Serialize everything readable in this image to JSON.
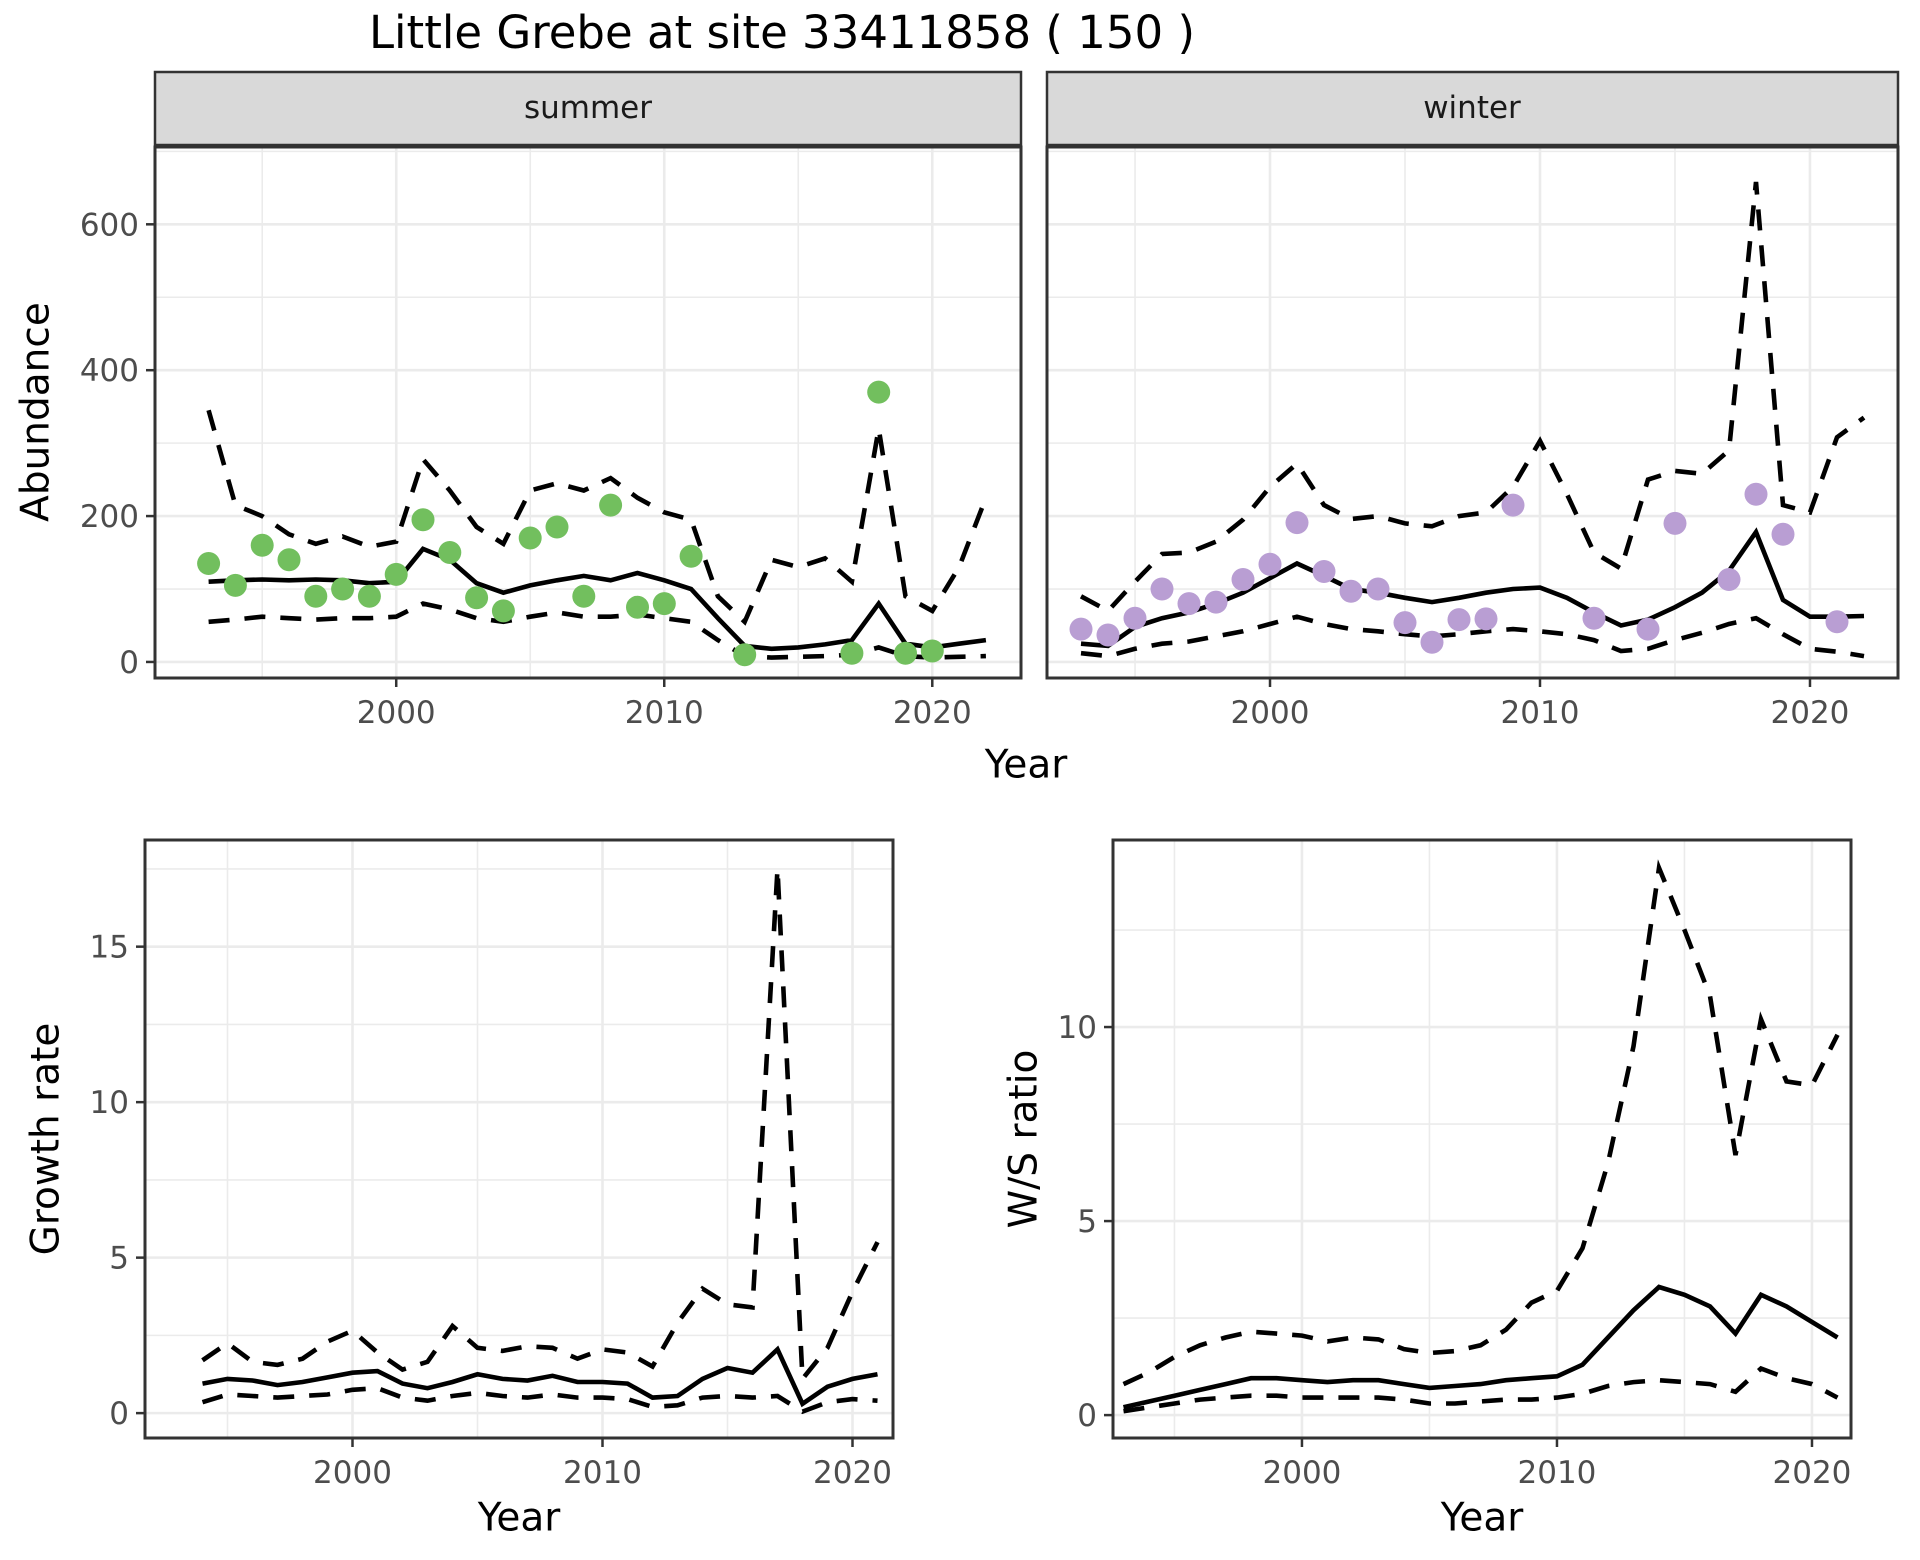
{
  "page": {
    "title": "Little Grebe at site 33411858 ( 150 )"
  },
  "chart_data": [
    {
      "id": "abundance_summer",
      "type": "line",
      "facet": "summer",
      "xlabel": "Year",
      "ylabel": "Abundance",
      "xlim": [
        1991.0,
        2023.31
      ],
      "ylim": [
        -22,
        706
      ],
      "x_ticks": [
        2000,
        2010,
        2020
      ],
      "x_minor": [
        1995,
        2005,
        2015
      ],
      "y_ticks": [
        0,
        200,
        400,
        600
      ],
      "y_minor": [
        100,
        300,
        500,
        700
      ],
      "grid": true,
      "point_color": "#72bf5e",
      "line_color": "#000000",
      "years": [
        1993,
        1994,
        1995,
        1996,
        1997,
        1998,
        1999,
        2000,
        2001,
        2002,
        2003,
        2004,
        2005,
        2006,
        2007,
        2008,
        2009,
        2010,
        2011,
        2012,
        2013,
        2014,
        2015,
        2016,
        2017,
        2018,
        2019,
        2020,
        2021,
        2022
      ],
      "series": [
        {
          "name": "fitted_index",
          "kind": "line",
          "dash": false,
          "values": [
            110,
            112,
            113,
            112,
            113,
            112,
            108,
            110,
            155,
            140,
            108,
            95,
            105,
            112,
            118,
            112,
            122,
            112,
            100,
            60,
            22,
            18,
            20,
            24,
            30,
            80,
            25,
            20,
            25,
            30
          ]
        },
        {
          "name": "upper_ci",
          "kind": "line",
          "dash": true,
          "values": [
            345,
            215,
            200,
            175,
            162,
            172,
            158,
            165,
            278,
            235,
            185,
            162,
            235,
            245,
            235,
            252,
            225,
            205,
            195,
            90,
            55,
            140,
            130,
            142,
            110,
            320,
            90,
            70,
            130,
            225
          ]
        },
        {
          "name": "lower_ci",
          "kind": "line",
          "dash": true,
          "values": [
            55,
            58,
            62,
            60,
            58,
            60,
            60,
            62,
            80,
            72,
            60,
            55,
            62,
            68,
            62,
            62,
            65,
            60,
            55,
            30,
            8,
            6,
            7,
            8,
            10,
            20,
            8,
            6,
            7,
            8
          ]
        },
        {
          "name": "observed_counts",
          "kind": "scatter",
          "years": [
            1993,
            1994,
            1995,
            1996,
            1997,
            1998,
            1999,
            2000,
            2001,
            2002,
            2003,
            2004,
            2005,
            2006,
            2007,
            2008,
            2009,
            2010,
            2011,
            2013,
            2017,
            2018,
            2019,
            2020
          ],
          "values": [
            135,
            105,
            160,
            140,
            90,
            100,
            90,
            120,
            195,
            150,
            88,
            70,
            170,
            185,
            90,
            215,
            75,
            80,
            145,
            10,
            12,
            370,
            12,
            15
          ]
        }
      ]
    },
    {
      "id": "abundance_winter",
      "type": "line",
      "facet": "winter",
      "xlabel": "Year",
      "ylabel": "Abundance",
      "xlim": [
        1991.74,
        2023.26
      ],
      "ylim": [
        -22,
        706
      ],
      "x_ticks": [
        2000,
        2010,
        2020
      ],
      "x_minor": [
        1995,
        2005,
        2015
      ],
      "y_ticks": [
        0,
        200,
        400,
        600
      ],
      "y_minor": [
        100,
        300,
        500,
        700
      ],
      "grid": true,
      "point_color": "#b99ed3",
      "line_color": "#000000",
      "years": [
        1993,
        1994,
        1995,
        1996,
        1997,
        1998,
        1999,
        2000,
        2001,
        2002,
        2003,
        2004,
        2005,
        2006,
        2007,
        2008,
        2009,
        2010,
        2011,
        2012,
        2013,
        2014,
        2015,
        2016,
        2017,
        2018,
        2019,
        2020,
        2021,
        2022
      ],
      "series": [
        {
          "name": "fitted_index",
          "kind": "line",
          "dash": false,
          "values": [
            25,
            22,
            48,
            60,
            68,
            80,
            95,
            115,
            135,
            118,
            100,
            95,
            88,
            82,
            88,
            95,
            100,
            102,
            88,
            68,
            50,
            58,
            75,
            95,
            125,
            178,
            85,
            62,
            62,
            63
          ]
        },
        {
          "name": "upper_ci",
          "kind": "line",
          "dash": true,
          "values": [
            90,
            70,
            110,
            148,
            150,
            165,
            195,
            240,
            272,
            215,
            196,
            200,
            190,
            186,
            200,
            205,
            240,
            303,
            230,
            150,
            128,
            250,
            262,
            258,
            290,
            658,
            215,
            205,
            308,
            335
          ]
        },
        {
          "name": "lower_ci",
          "kind": "line",
          "dash": true,
          "values": [
            12,
            8,
            18,
            25,
            28,
            35,
            42,
            52,
            62,
            52,
            45,
            42,
            38,
            35,
            38,
            42,
            45,
            42,
            38,
            30,
            15,
            18,
            30,
            40,
            52,
            60,
            38,
            18,
            14,
            8
          ]
        },
        {
          "name": "observed_counts",
          "kind": "scatter",
          "years": [
            1993,
            1994,
            1995,
            1996,
            1997,
            1998,
            1999,
            2000,
            2001,
            2002,
            2003,
            2004,
            2005,
            2006,
            2007,
            2008,
            2009,
            2012,
            2014,
            2015,
            2017,
            2018,
            2019,
            2021
          ],
          "values": [
            45,
            37,
            60,
            100,
            80,
            82,
            113,
            134,
            191,
            124,
            97,
            100,
            54,
            27,
            58,
            59,
            215,
            60,
            45,
            190,
            113,
            230,
            175,
            55
          ]
        }
      ]
    },
    {
      "id": "growth_rate",
      "type": "line",
      "facet": "",
      "xlabel": "Year",
      "ylabel": "Growth rate",
      "xlim": [
        1991.7,
        2021.62
      ],
      "ylim": [
        -0.8,
        18.43
      ],
      "x_ticks": [
        2000,
        2010,
        2020
      ],
      "x_minor": [
        1995,
        2005,
        2015
      ],
      "y_ticks": [
        0,
        5,
        10,
        15
      ],
      "y_minor": [
        2.5,
        7.5,
        12.5,
        17.5
      ],
      "grid": true,
      "point_color": "",
      "line_color": "#000000",
      "years": [
        1994,
        1995,
        1996,
        1997,
        1998,
        1999,
        2000,
        2001,
        2002,
        2003,
        2004,
        2005,
        2006,
        2007,
        2008,
        2009,
        2010,
        2011,
        2012,
        2013,
        2014,
        2015,
        2016,
        2017,
        2018,
        2019,
        2020,
        2021
      ],
      "series": [
        {
          "name": "growth_rate",
          "kind": "line",
          "dash": false,
          "values": [
            0.95,
            1.1,
            1.05,
            0.9,
            1.0,
            1.15,
            1.3,
            1.35,
            0.95,
            0.8,
            1.0,
            1.25,
            1.1,
            1.05,
            1.2,
            1.0,
            1.0,
            0.95,
            0.5,
            0.55,
            1.1,
            1.45,
            1.3,
            2.05,
            0.3,
            0.85,
            1.1,
            1.25
          ]
        },
        {
          "name": "upper_ci",
          "kind": "line",
          "dash": true,
          "values": [
            1.7,
            2.25,
            1.65,
            1.55,
            1.75,
            2.3,
            2.65,
            1.95,
            1.4,
            1.65,
            2.8,
            2.1,
            2.0,
            2.15,
            2.1,
            1.75,
            2.05,
            1.95,
            1.5,
            2.9,
            4.0,
            3.5,
            3.4,
            17.5,
            1.1,
            2.1,
            3.9,
            5.5
          ]
        },
        {
          "name": "lower_ci",
          "kind": "line",
          "dash": true,
          "values": [
            0.35,
            0.6,
            0.55,
            0.5,
            0.55,
            0.6,
            0.75,
            0.8,
            0.5,
            0.4,
            0.55,
            0.65,
            0.55,
            0.5,
            0.6,
            0.5,
            0.5,
            0.45,
            0.2,
            0.25,
            0.5,
            0.55,
            0.5,
            0.55,
            0.05,
            0.35,
            0.45,
            0.4
          ]
        }
      ]
    },
    {
      "id": "ws_ratio",
      "type": "line",
      "facet": "",
      "xlabel": "Year",
      "ylabel": "W/S ratio",
      "xlim": [
        1992.59,
        2021.53
      ],
      "ylim": [
        -0.59,
        14.82
      ],
      "x_ticks": [
        2000,
        2010,
        2020
      ],
      "x_minor": [
        1995,
        2005,
        2015
      ],
      "y_ticks": [
        0,
        5,
        10
      ],
      "y_minor": [
        2.5,
        7.5,
        12.5
      ],
      "grid": true,
      "point_color": "",
      "line_color": "#000000",
      "years": [
        1993,
        1994,
        1995,
        1996,
        1997,
        1998,
        1999,
        2000,
        2001,
        2002,
        2003,
        2004,
        2005,
        2006,
        2007,
        2008,
        2009,
        2010,
        2011,
        2012,
        2013,
        2014,
        2015,
        2016,
        2017,
        2018,
        2019,
        2020,
        2021
      ],
      "series": [
        {
          "name": "ws_ratio",
          "kind": "line",
          "dash": false,
          "values": [
            0.2,
            0.35,
            0.5,
            0.65,
            0.8,
            0.95,
            0.95,
            0.9,
            0.85,
            0.9,
            0.9,
            0.8,
            0.7,
            0.75,
            0.8,
            0.9,
            0.95,
            1.0,
            1.3,
            2.0,
            2.7,
            3.3,
            3.1,
            2.8,
            2.1,
            3.1,
            2.8,
            2.4,
            2.0
          ]
        },
        {
          "name": "upper_ci",
          "kind": "line",
          "dash": true,
          "values": [
            0.8,
            1.1,
            1.5,
            1.8,
            2.0,
            2.15,
            2.1,
            2.05,
            1.9,
            2.0,
            1.95,
            1.7,
            1.6,
            1.65,
            1.8,
            2.2,
            2.9,
            3.2,
            4.3,
            6.5,
            9.5,
            14.1,
            12.5,
            10.8,
            6.7,
            10.2,
            8.6,
            8.5,
            9.8
          ]
        },
        {
          "name": "lower_ci",
          "kind": "line",
          "dash": true,
          "values": [
            0.1,
            0.2,
            0.3,
            0.4,
            0.45,
            0.5,
            0.5,
            0.45,
            0.45,
            0.45,
            0.45,
            0.4,
            0.3,
            0.3,
            0.35,
            0.4,
            0.4,
            0.45,
            0.55,
            0.75,
            0.85,
            0.9,
            0.85,
            0.8,
            0.6,
            1.2,
            0.95,
            0.8,
            0.45
          ]
        }
      ]
    }
  ],
  "style": {
    "grid_color": "#ebebeb",
    "panel_border_color": "#333333",
    "strip_fill": "#d9d9d9",
    "tick_color": "#333333",
    "tick_label_color": "#4d4d4d"
  }
}
